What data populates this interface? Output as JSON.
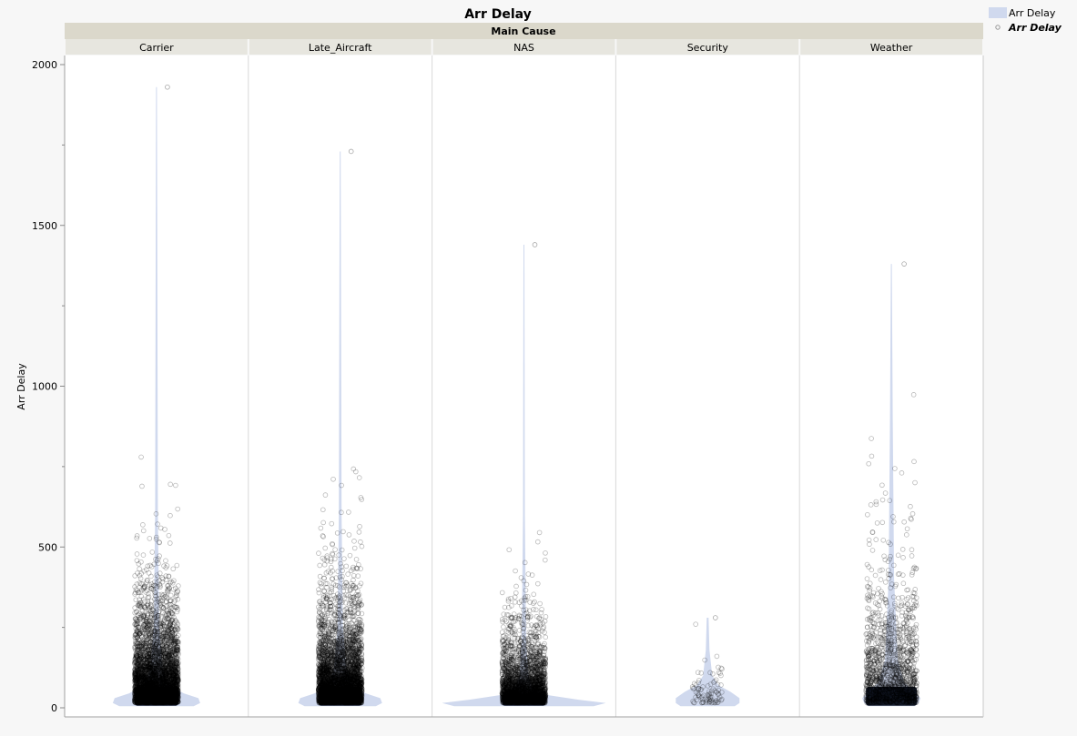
{
  "chart_data": {
    "type": "violin-scatter",
    "title": "Arr Delay",
    "group_title": "Main Cause",
    "categories": [
      "Carrier",
      "Late_Aircraft",
      "NAS",
      "Security",
      "Weather"
    ],
    "ylabel": "Arr Delay",
    "ylim": [
      0,
      2000
    ],
    "yticks": [
      0,
      500,
      1000,
      1500,
      2000
    ],
    "grid": false,
    "legend": {
      "placement": "top-right",
      "entries": [
        "Arr Delay",
        "Arr Delay"
      ]
    },
    "series": [
      {
        "category": "Carrier",
        "approx_max": 1930,
        "approx_min": 15,
        "point_density": "very high"
      },
      {
        "category": "Late_Aircraft",
        "approx_max": 1730,
        "approx_min": 15,
        "point_density": "very high"
      },
      {
        "category": "NAS",
        "approx_max": 1440,
        "approx_min": 15,
        "point_density": "high"
      },
      {
        "category": "Security",
        "approx_max": 280,
        "approx_min": 15,
        "point_density": "low"
      },
      {
        "category": "Weather",
        "approx_max": 1380,
        "approx_min": 15,
        "point_density": "medium"
      }
    ],
    "colors": {
      "violin": "#d0d9ee",
      "violin_dense": "#161d2e",
      "points": "#000000",
      "header_band": "#dbd8cb",
      "category_band": "#e7e6df"
    }
  }
}
